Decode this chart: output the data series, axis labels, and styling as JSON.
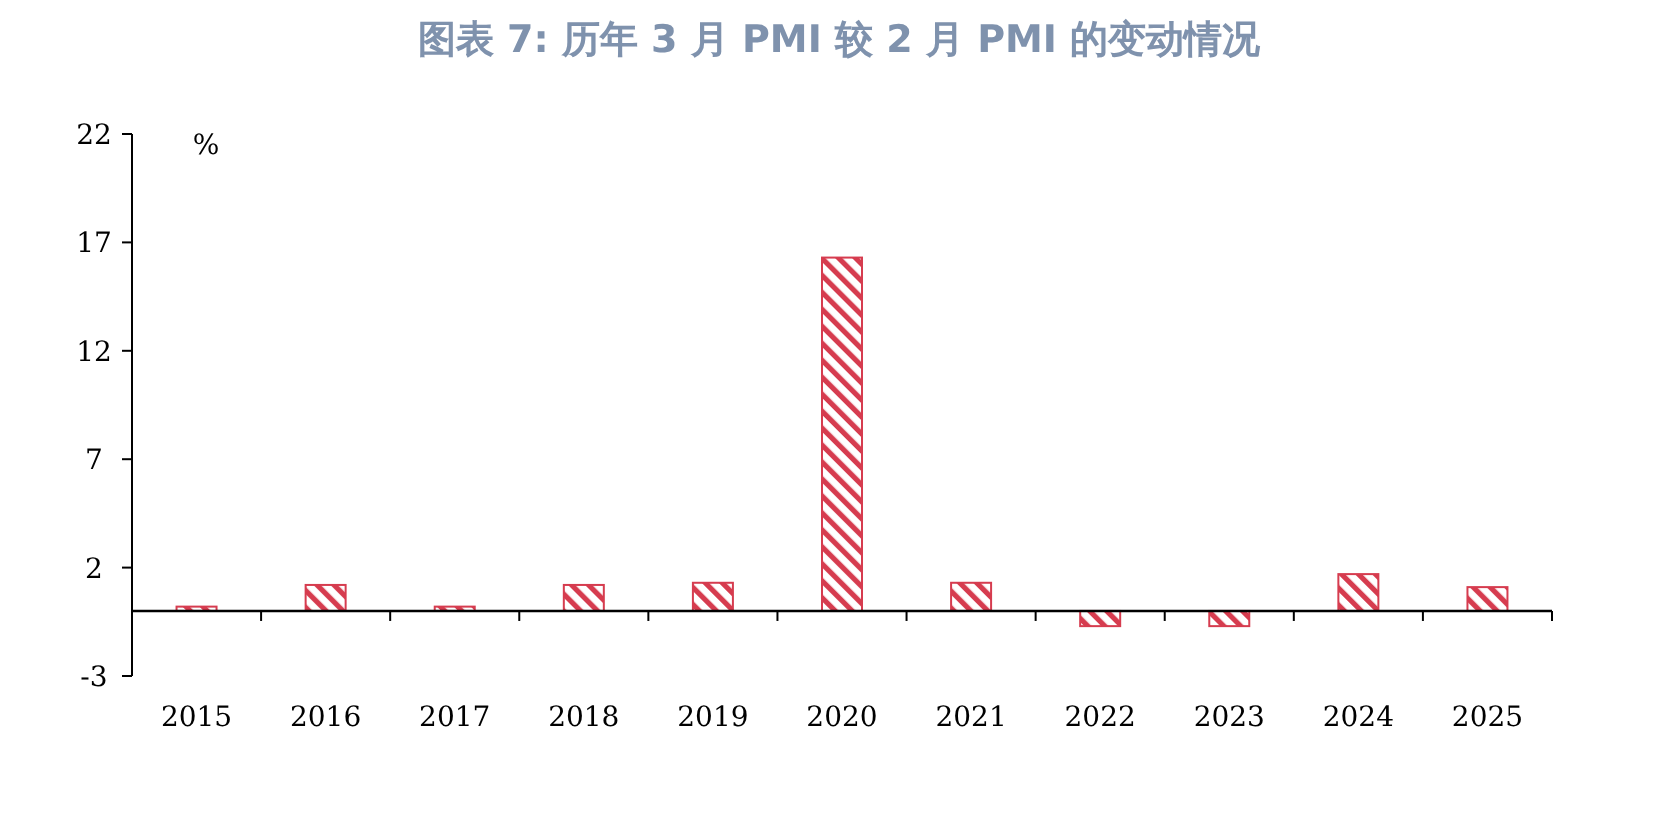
{
  "chart_data": {
    "type": "bar",
    "title": "图表 7: 历年 3 月 PMI 较 2 月 PMI 的变动情况",
    "ylabel": "%",
    "categories": [
      "2015",
      "2016",
      "2017",
      "2018",
      "2019",
      "2020",
      "2021",
      "2022",
      "2023",
      "2024",
      "2025"
    ],
    "values": [
      0.2,
      1.2,
      0.2,
      1.2,
      1.3,
      16.3,
      1.3,
      -0.7,
      -0.7,
      1.7,
      1.1
    ],
    "color": "#d63c4f",
    "ylim": [
      -3,
      22
    ],
    "yticks": [
      -3,
      2,
      7,
      12,
      17,
      22
    ],
    "grid": false
  }
}
